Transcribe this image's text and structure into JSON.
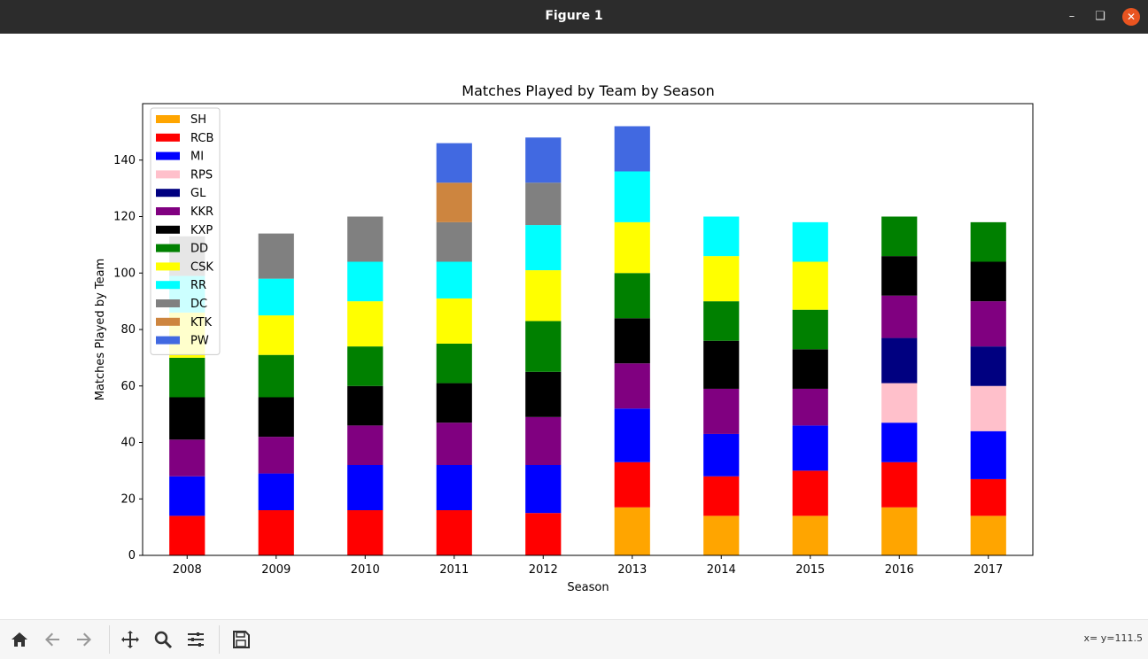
{
  "window": {
    "title": "Figure 1"
  },
  "toolbar": {
    "coords": "x= y=111.5"
  },
  "chart_data": {
    "type": "bar",
    "stacked": true,
    "title": "Matches Played by Team by Season",
    "xlabel": "Season",
    "ylabel": "Matches Played by Team",
    "ylim": [
      0,
      160
    ],
    "yticks": [
      0,
      20,
      40,
      60,
      80,
      100,
      120,
      140
    ],
    "categories": [
      "2008",
      "2009",
      "2010",
      "2011",
      "2012",
      "2013",
      "2014",
      "2015",
      "2016",
      "2017"
    ],
    "legend_position": "upper-left",
    "series": [
      {
        "name": "SH",
        "color": "#ffa500",
        "values": [
          0,
          0,
          0,
          0,
          0,
          17,
          14,
          14,
          17,
          14
        ]
      },
      {
        "name": "RCB",
        "color": "#ff0000",
        "values": [
          14,
          16,
          16,
          16,
          15,
          16,
          14,
          16,
          16,
          13
        ]
      },
      {
        "name": "MI",
        "color": "#0000ff",
        "values": [
          14,
          13,
          16,
          16,
          17,
          19,
          15,
          16,
          14,
          17
        ]
      },
      {
        "name": "RPS",
        "color": "#ffc0cb",
        "values": [
          0,
          0,
          0,
          0,
          0,
          0,
          0,
          0,
          14,
          16
        ]
      },
      {
        "name": "GL",
        "color": "#000080",
        "values": [
          0,
          0,
          0,
          0,
          0,
          0,
          0,
          0,
          16,
          14
        ]
      },
      {
        "name": "KKR",
        "color": "#800080",
        "values": [
          13,
          13,
          14,
          15,
          17,
          16,
          16,
          13,
          15,
          16
        ]
      },
      {
        "name": "KXP",
        "color": "#000000",
        "values": [
          15,
          14,
          14,
          14,
          16,
          16,
          17,
          14,
          14,
          14
        ]
      },
      {
        "name": "DD",
        "color": "#008000",
        "values": [
          14,
          15,
          14,
          14,
          18,
          16,
          14,
          14,
          14,
          14
        ]
      },
      {
        "name": "CSK",
        "color": "#ffff00",
        "values": [
          16,
          14,
          16,
          16,
          18,
          18,
          16,
          17,
          0,
          0
        ]
      },
      {
        "name": "RR",
        "color": "#00ffff",
        "values": [
          13,
          13,
          14,
          13,
          16,
          18,
          14,
          14,
          0,
          0
        ]
      },
      {
        "name": "DC",
        "color": "#808080",
        "values": [
          14,
          16,
          16,
          14,
          15,
          0,
          0,
          0,
          0,
          0
        ]
      },
      {
        "name": "KTK",
        "color": "#cd853f",
        "values": [
          0,
          0,
          0,
          14,
          0,
          0,
          0,
          0,
          0,
          0
        ]
      },
      {
        "name": "PW",
        "color": "#4169e1",
        "values": [
          0,
          0,
          0,
          14,
          16,
          16,
          0,
          0,
          0,
          0
        ]
      }
    ]
  }
}
